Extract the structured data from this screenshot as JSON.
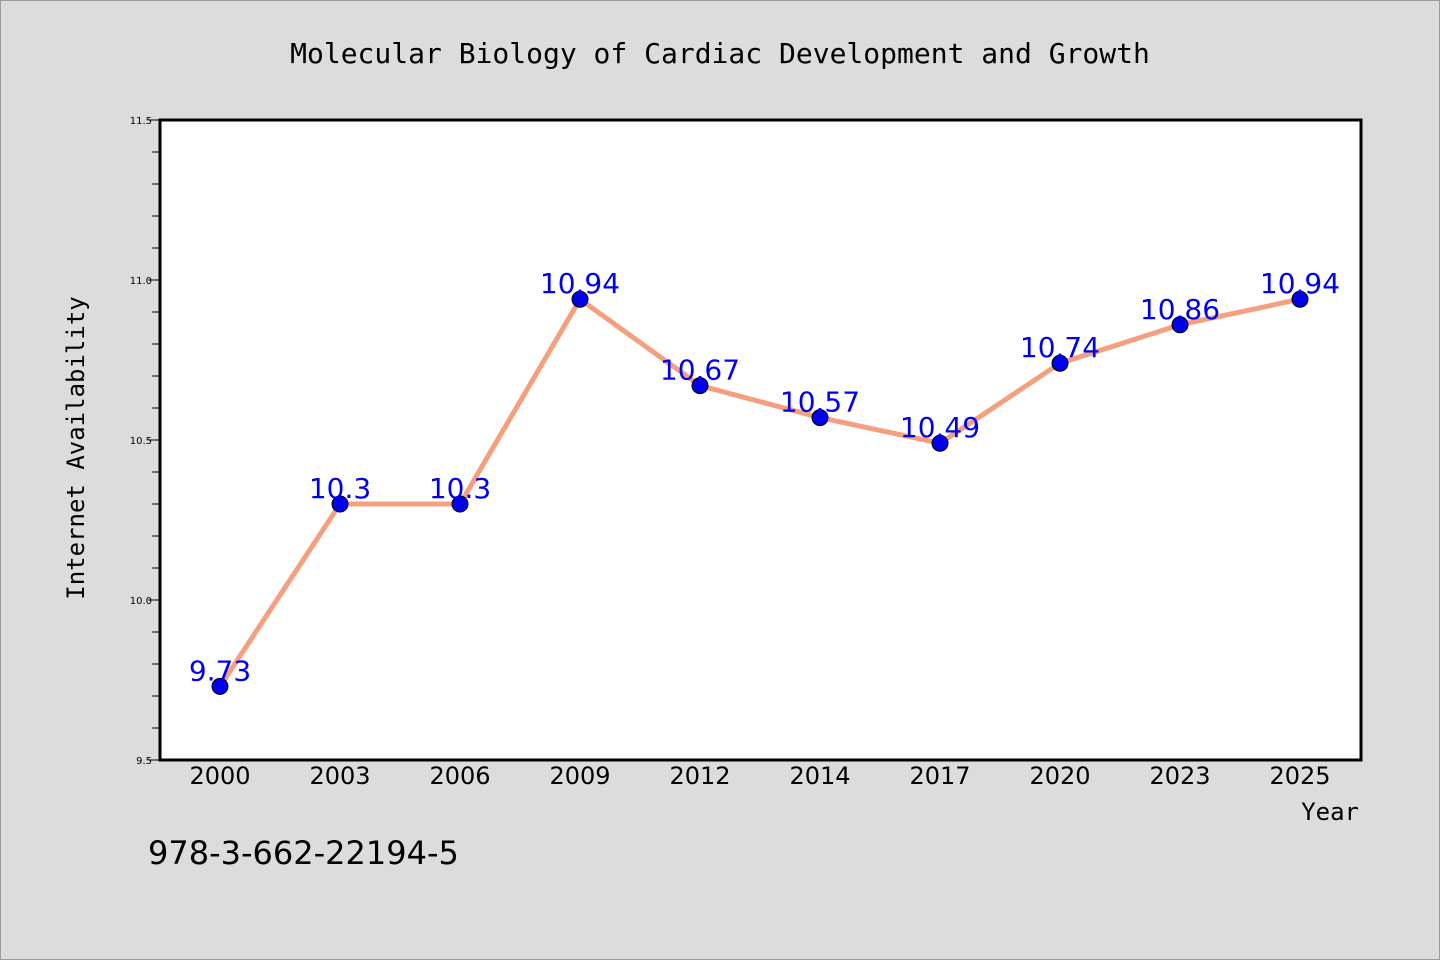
{
  "chart_data": {
    "type": "line",
    "title": "Molecular Biology of Cardiac Development and Growth",
    "xlabel": "Year",
    "ylabel": "Internet Availability",
    "categories": [
      "2000",
      "2003",
      "2006",
      "2009",
      "2012",
      "2014",
      "2017",
      "2020",
      "2023",
      "2025"
    ],
    "series": [
      {
        "values": [
          9.73,
          10.3,
          10.3,
          10.94,
          10.67,
          10.57,
          10.49,
          10.74,
          10.86,
          10.94
        ],
        "labels": [
          "9.73",
          "10.3",
          "10.3",
          "10.94",
          "10.67",
          "10.57",
          "10.49",
          "10.74",
          "10.86",
          "10.94"
        ],
        "line_color": "#f4a07e",
        "marker_color": "#0000ee",
        "label_color": "#0000ee"
      }
    ],
    "ylim": [
      9.5,
      11.5
    ],
    "yticks": [
      "9.5",
      "10.0",
      "10.5",
      "11.0",
      "11.5"
    ],
    "ytick_values": [
      9.5,
      10.0,
      10.5,
      11.0,
      11.5
    ],
    "grid": false,
    "legend": "none"
  },
  "footer": {
    "isbn": "978-3-662-22194-5"
  },
  "colors": {
    "background": "#dcdcdc",
    "plot_background": "#ffffff"
  }
}
